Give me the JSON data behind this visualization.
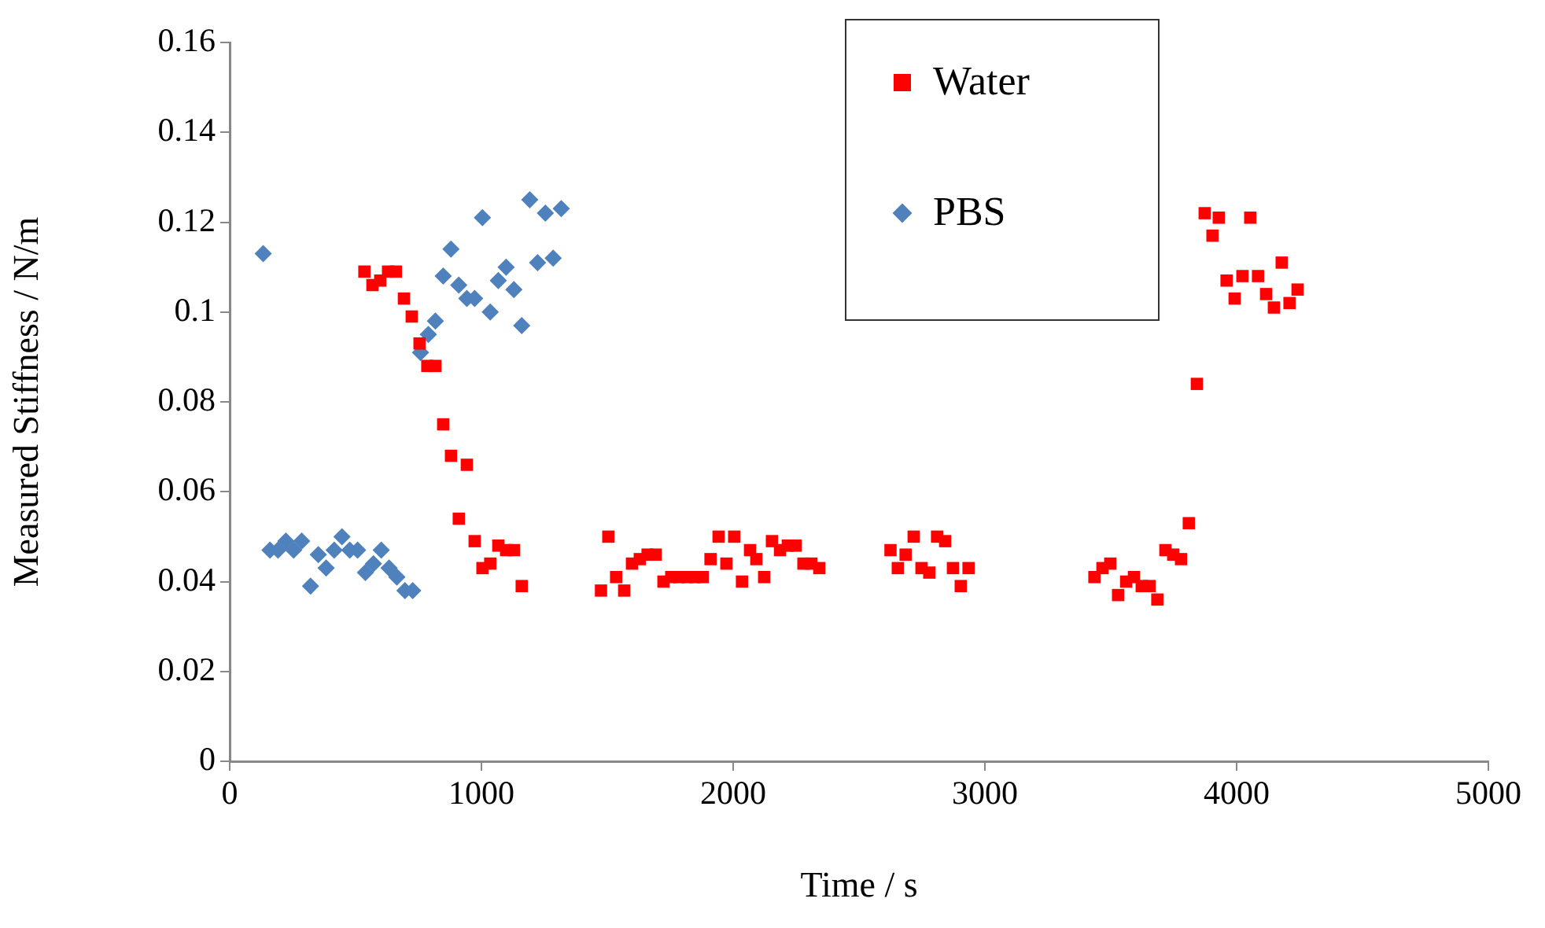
{
  "chart_data": {
    "type": "scatter",
    "xlabel": "Time / s",
    "ylabel": "Measured Stiffness / N/m",
    "xlim": [
      0,
      5000
    ],
    "xticks": [
      0,
      1000,
      2000,
      3000,
      4000,
      5000
    ],
    "ylim": [
      0,
      0.16
    ],
    "yticks": [
      0,
      0.02,
      0.04,
      0.06,
      0.08,
      0.1,
      0.12,
      0.14,
      0.16
    ],
    "grid": false,
    "legend": "top right",
    "series": [
      {
        "name": "Water",
        "color": "#ff0000",
        "marker": "square",
        "x": [
          535,
          567,
          598,
          629,
          660,
          692,
          723,
          754,
          785,
          817,
          848,
          879,
          910,
          942,
          973,
          1004,
          1035,
          1067,
          1098,
          1129,
          1160,
          1475,
          1504,
          1535,
          1567,
          1598,
          1629,
          1660,
          1692,
          1723,
          1754,
          1785,
          1817,
          1848,
          1879,
          1910,
          1942,
          1973,
          2004,
          2035,
          2067,
          2092,
          2123,
          2154,
          2186,
          2217,
          2248,
          2279,
          2310,
          2342,
          2625,
          2654,
          2685,
          2717,
          2748,
          2779,
          2810,
          2842,
          2873,
          2904,
          2935,
          3435,
          3467,
          3498,
          3529,
          3561,
          3592,
          3623,
          3654,
          3685,
          3717,
          3748,
          3779,
          3810,
          3842,
          3873,
          3904,
          3929,
          3960,
          3992,
          4023,
          4054,
          4085,
          4117,
          4148,
          4179,
          4210,
          4242
        ],
        "values": [
          0.109,
          0.106,
          0.107,
          0.109,
          0.109,
          0.103,
          0.099,
          0.093,
          0.088,
          0.088,
          0.075,
          0.068,
          0.054,
          0.066,
          0.049,
          0.043,
          0.044,
          0.048,
          0.047,
          0.047,
          0.039,
          0.038,
          0.05,
          0.041,
          0.038,
          0.044,
          0.045,
          0.046,
          0.046,
          0.04,
          0.041,
          0.041,
          0.041,
          0.041,
          0.041,
          0.045,
          0.05,
          0.044,
          0.05,
          0.04,
          0.047,
          0.045,
          0.041,
          0.049,
          0.047,
          0.048,
          0.048,
          0.044,
          0.044,
          0.043,
          0.047,
          0.043,
          0.046,
          0.05,
          0.043,
          0.042,
          0.05,
          0.049,
          0.043,
          0.039,
          0.043,
          0.041,
          0.043,
          0.044,
          0.037,
          0.04,
          0.041,
          0.039,
          0.039,
          0.036,
          0.047,
          0.046,
          0.045,
          0.053,
          0.084,
          0.122,
          0.117,
          0.121,
          0.107,
          0.103,
          0.108,
          0.121,
          0.108,
          0.104,
          0.101,
          0.111,
          0.102,
          0.105
        ]
      },
      {
        "name": "PBS",
        "color": "#4f81bd",
        "marker": "diamond",
        "x": [
          133,
          160,
          192,
          223,
          254,
          286,
          321,
          352,
          383,
          415,
          446,
          477,
          508,
          539,
          571,
          602,
          633,
          664,
          696,
          727,
          758,
          789,
          817,
          848,
          879,
          910,
          942,
          973,
          1004,
          1035,
          1067,
          1098,
          1129,
          1160,
          1192,
          1223,
          1254,
          1285,
          1317
        ],
        "values": [
          0.113,
          0.047,
          0.047,
          0.049,
          0.047,
          0.049,
          0.039,
          0.046,
          0.043,
          0.047,
          0.05,
          0.047,
          0.047,
          0.042,
          0.044,
          0.047,
          0.043,
          0.041,
          0.038,
          0.038,
          0.091,
          0.095,
          0.098,
          0.108,
          0.114,
          0.106,
          0.103,
          0.103,
          0.121,
          0.1,
          0.107,
          0.11,
          0.105,
          0.097,
          0.125,
          0.111,
          0.122,
          0.112,
          0.123
        ]
      }
    ]
  }
}
